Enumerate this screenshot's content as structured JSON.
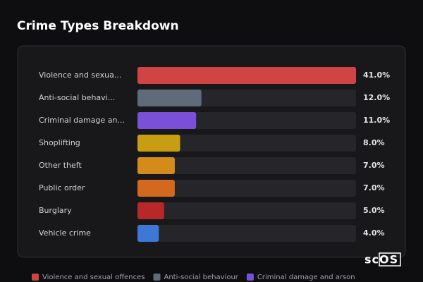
{
  "chart_data": {
    "type": "bar",
    "orientation": "horizontal",
    "title": "Crime Types Breakdown",
    "categories": [
      "Violence and sexua...",
      "Anti-social behavi...",
      "Criminal damage an...",
      "Shoplifting",
      "Other theft",
      "Public order",
      "Burglary",
      "Vehicle crime"
    ],
    "values": [
      41,
      12,
      11,
      8,
      7,
      7,
      5,
      4
    ],
    "value_labels": [
      "41.0%",
      "12.0%",
      "11.0%",
      "8.0%",
      "7.0%",
      "7.0%",
      "5.0%",
      "4.0%"
    ],
    "colors": [
      "#d04445",
      "#5f6b7b",
      "#7a50d8",
      "#c99d12",
      "#d38c1a",
      "#d4681e",
      "#b82729",
      "#3d78d6"
    ],
    "xlim": [
      0,
      41
    ],
    "legend_labels": [
      "Violence and sexual offences",
      "Anti-social behaviour",
      "Criminal damage and arson"
    ]
  },
  "logo": "scOS"
}
